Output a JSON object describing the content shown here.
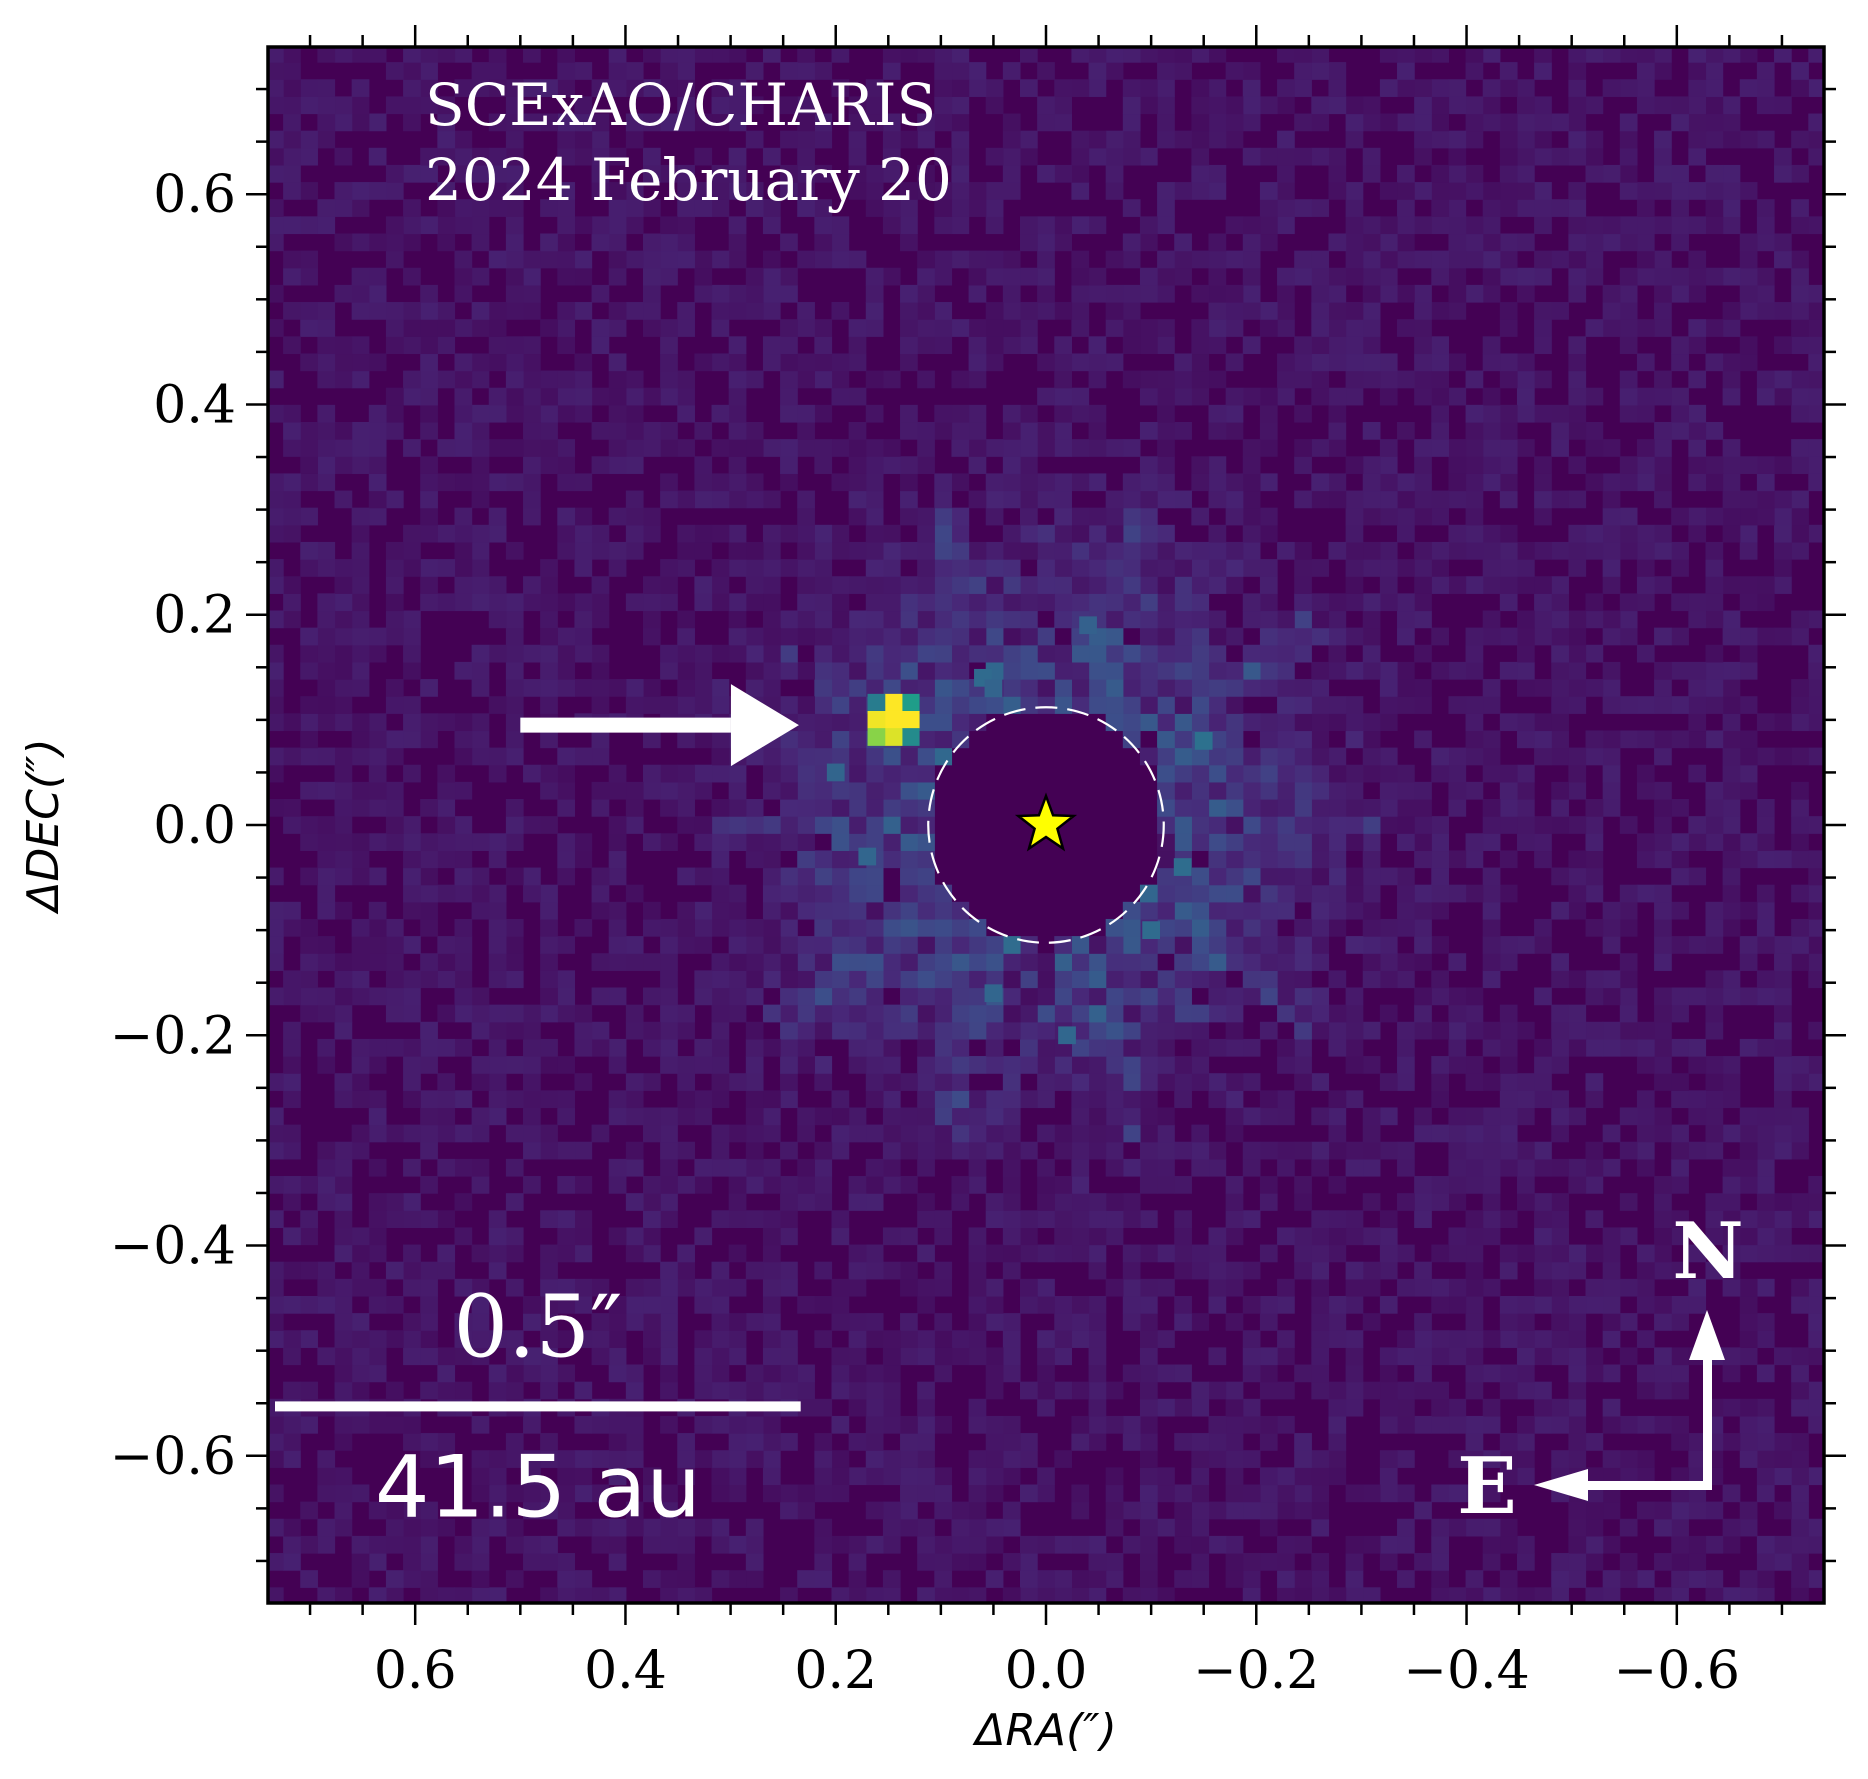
{
  "chart_data": {
    "type": "heatmap",
    "title_lines": [
      "SCExAO/CHARIS",
      "2024 February 20"
    ],
    "xlabel": "ΔRA(″)",
    "ylabel": "ΔDEC(″)",
    "xlim": [
      0.74,
      -0.74
    ],
    "ylim": [
      -0.74,
      0.74
    ],
    "x_ticks": [
      0.6,
      0.4,
      0.2,
      0.0,
      -0.2,
      -0.4,
      -0.6
    ],
    "y_ticks": [
      0.6,
      0.4,
      0.2,
      0.0,
      -0.2,
      -0.4,
      -0.6
    ],
    "x_tick_labels": [
      "0.6",
      "0.4",
      "0.2",
      "0.0",
      "−0.2",
      "−0.4",
      "−0.6"
    ],
    "y_tick_labels": [
      "0.6",
      "0.4",
      "0.2",
      "0.0",
      "−0.2",
      "−0.4",
      "−0.6"
    ],
    "minor_tick_step": 0.05,
    "colormap": "viridis",
    "background_color": "#440154",
    "companion": {
      "x": 0.145,
      "y": 0.1,
      "color": "#fde725"
    },
    "bright_speckles": [
      {
        "x": 0.06,
        "y": 0.14
      },
      {
        "x": 0.05,
        "y": 0.13
      },
      {
        "x": -0.04,
        "y": 0.19
      },
      {
        "x": -0.15,
        "y": 0.08
      },
      {
        "x": 0.17,
        "y": -0.03
      },
      {
        "x": 0.05,
        "y": -0.16
      },
      {
        "x": 0.2,
        "y": 0.05
      },
      {
        "x": -0.13,
        "y": -0.04
      },
      {
        "x": -0.1,
        "y": -0.1
      },
      {
        "x": -0.02,
        "y": -0.2
      }
    ],
    "host_star": {
      "x": 0.0,
      "y": 0.0,
      "color": "#ffff00"
    },
    "mask_radius": 0.112,
    "arrow": {
      "from": [
        0.5,
        0.095
      ],
      "to": [
        0.235,
        0.095
      ]
    },
    "scale_bar": {
      "length_arcsec": 0.5,
      "label_top": "0.5″",
      "label_bottom": "41.5 au"
    },
    "compass": {
      "north_label": "N",
      "east_label": "E"
    }
  }
}
